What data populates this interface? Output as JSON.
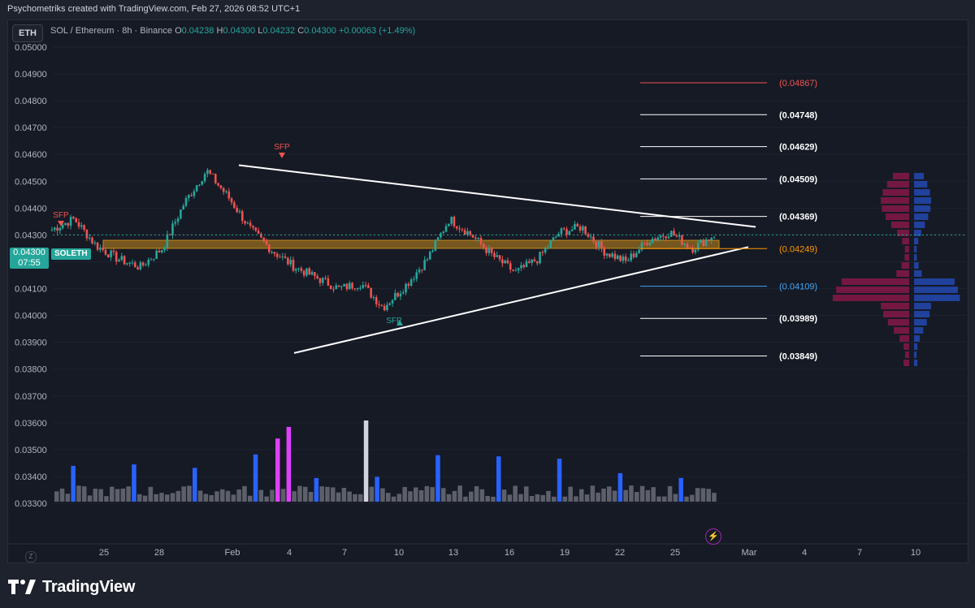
{
  "caption": "Psychometriks created with TradingView.com, Feb 27, 2026 08:52 UTC+1",
  "symbol_button": "ETH",
  "legend": {
    "title": "SOL / Ethereum · 8h · Binance",
    "o_label": "O",
    "o": "0.04238",
    "h_label": "H",
    "h": "0.04300",
    "l_label": "L",
    "l": "0.04232",
    "c_label": "C",
    "c": "0.04300",
    "change": "+0.00063 (+1.49%)"
  },
  "last_price": {
    "value": "0.04300",
    "countdown": "07:55",
    "tag": "SOLETH"
  },
  "z_button": "Z",
  "brand": {
    "name": "TradingView",
    "icon": "tradingview-logo-icon"
  },
  "flash_icon": "lightning-icon",
  "colors": {
    "bull": "#26a69a",
    "bear": "#ef5350",
    "volume_blue": "#2962ff",
    "volume_gray": "#5d606b",
    "volume_magenta": "#e040fb",
    "zone": "#c68a1b",
    "text": "#b2b5be",
    "bg": "#161a25"
  },
  "chart_data": {
    "type": "candlestick",
    "title": "SOL / Ethereum · 8h · Binance",
    "y_ticks": [
      "0.05000",
      "0.04900",
      "0.04800",
      "0.04700",
      "0.04600",
      "0.04500",
      "0.04400",
      "0.04300",
      "0.04200",
      "0.04100",
      "0.04000",
      "0.03900",
      "0.03800",
      "0.03700",
      "0.03600",
      "0.03500",
      "0.03400",
      "0.03300"
    ],
    "x_ticks": [
      "25",
      "28",
      "Feb",
      "4",
      "7",
      "10",
      "13",
      "16",
      "19",
      "22",
      "25",
      "Mar",
      "4",
      "7",
      "10"
    ],
    "price_path_approx": [
      0.0432,
      0.0436,
      0.0426,
      0.0421,
      0.0418,
      0.0425,
      0.0442,
      0.0454,
      0.0444,
      0.0432,
      0.0424,
      0.0418,
      0.0414,
      0.041,
      0.0412,
      0.0403,
      0.0411,
      0.0421,
      0.0436,
      0.043,
      0.0422,
      0.0416,
      0.0421,
      0.0431,
      0.0433,
      0.0424,
      0.042,
      0.0428,
      0.0431,
      0.0425,
      0.043
    ],
    "fib_levels": [
      {
        "value": "(0.04867)",
        "price": 0.04867,
        "color": "#ef5350"
      },
      {
        "value": "(0.04748)",
        "price": 0.04748,
        "color": "#ffffff"
      },
      {
        "value": "(0.04629)",
        "price": 0.04629,
        "color": "#ffffff"
      },
      {
        "value": "(0.04509)",
        "price": 0.04509,
        "color": "#ffffff"
      },
      {
        "value": "(0.04369)",
        "price": 0.04369,
        "color": "#ffffff"
      },
      {
        "value": "(0.04249)",
        "price": 0.04249,
        "color": "#ff9800"
      },
      {
        "value": "(0.04109)",
        "price": 0.04109,
        "color": "#42a5f5"
      },
      {
        "value": "(0.03989)",
        "price": 0.03989,
        "color": "#ffffff"
      },
      {
        "value": "(0.03849)",
        "price": 0.03849,
        "color": "#ffffff"
      }
    ],
    "annotations": [
      {
        "text": "SFP",
        "color": "#ef5350"
      },
      {
        "text": "SFP",
        "color": "#ef5350"
      },
      {
        "text": "SFP",
        "color": "#26a69a"
      }
    ],
    "support_zone": {
      "low": 0.0425,
      "high": 0.0428
    },
    "triangle": {
      "upper_start": 0.0456,
      "upper_end": 0.0433,
      "lower_start": 0.0386,
      "lower_end": 0.04255
    }
  }
}
